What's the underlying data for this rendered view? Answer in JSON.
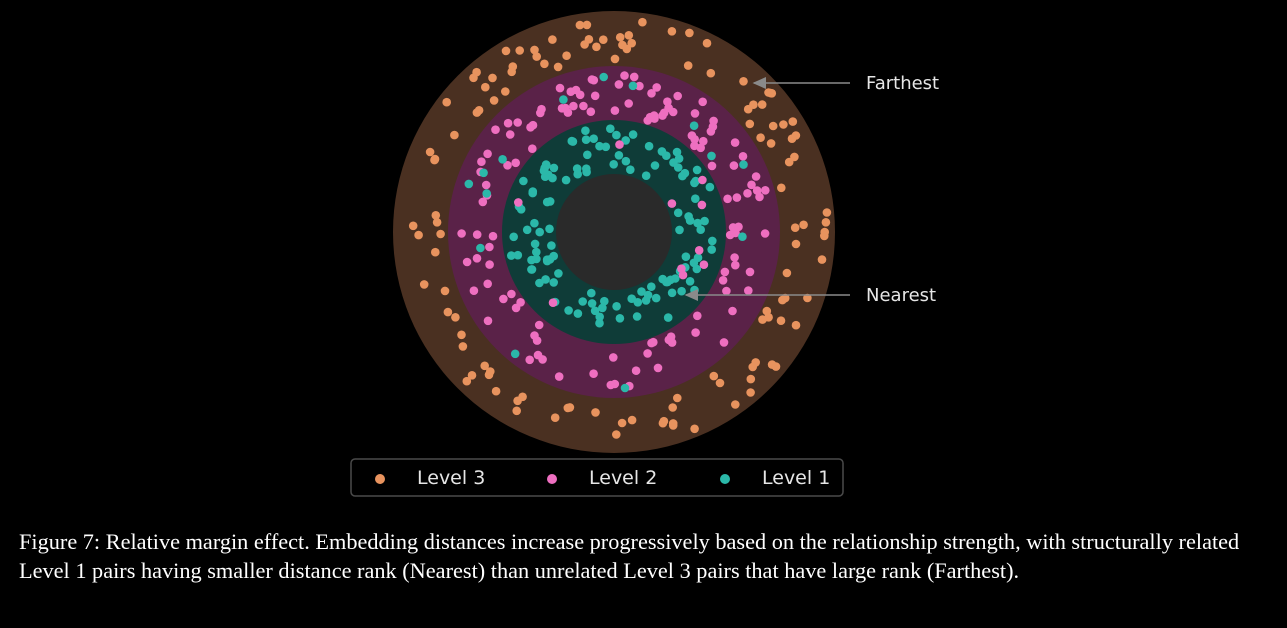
{
  "diagram": {
    "annotations": {
      "outer": "Farthest",
      "inner": "Nearest"
    },
    "legend": [
      {
        "label": "Level 3",
        "color": "#e8935e"
      },
      {
        "label": "Level 2",
        "color": "#ee6fc0"
      },
      {
        "label": "Level 1",
        "color": "#2bb8a9"
      }
    ],
    "rings": [
      {
        "name": "Level 3",
        "color": "#4a3021"
      },
      {
        "name": "Level 2",
        "color": "#5a2248"
      },
      {
        "name": "Level 1",
        "color": "#0f3c38"
      },
      {
        "name": "center",
        "color": "#2a2a2a"
      }
    ]
  },
  "caption": "Figure 7: Relative margin effect. Embedding distances increase progressively based on the relationship strength, with structurally related Level 1 pairs having smaller distance rank (Nearest) than unrelated Level 3 pairs that have large rank (Farthest)."
}
